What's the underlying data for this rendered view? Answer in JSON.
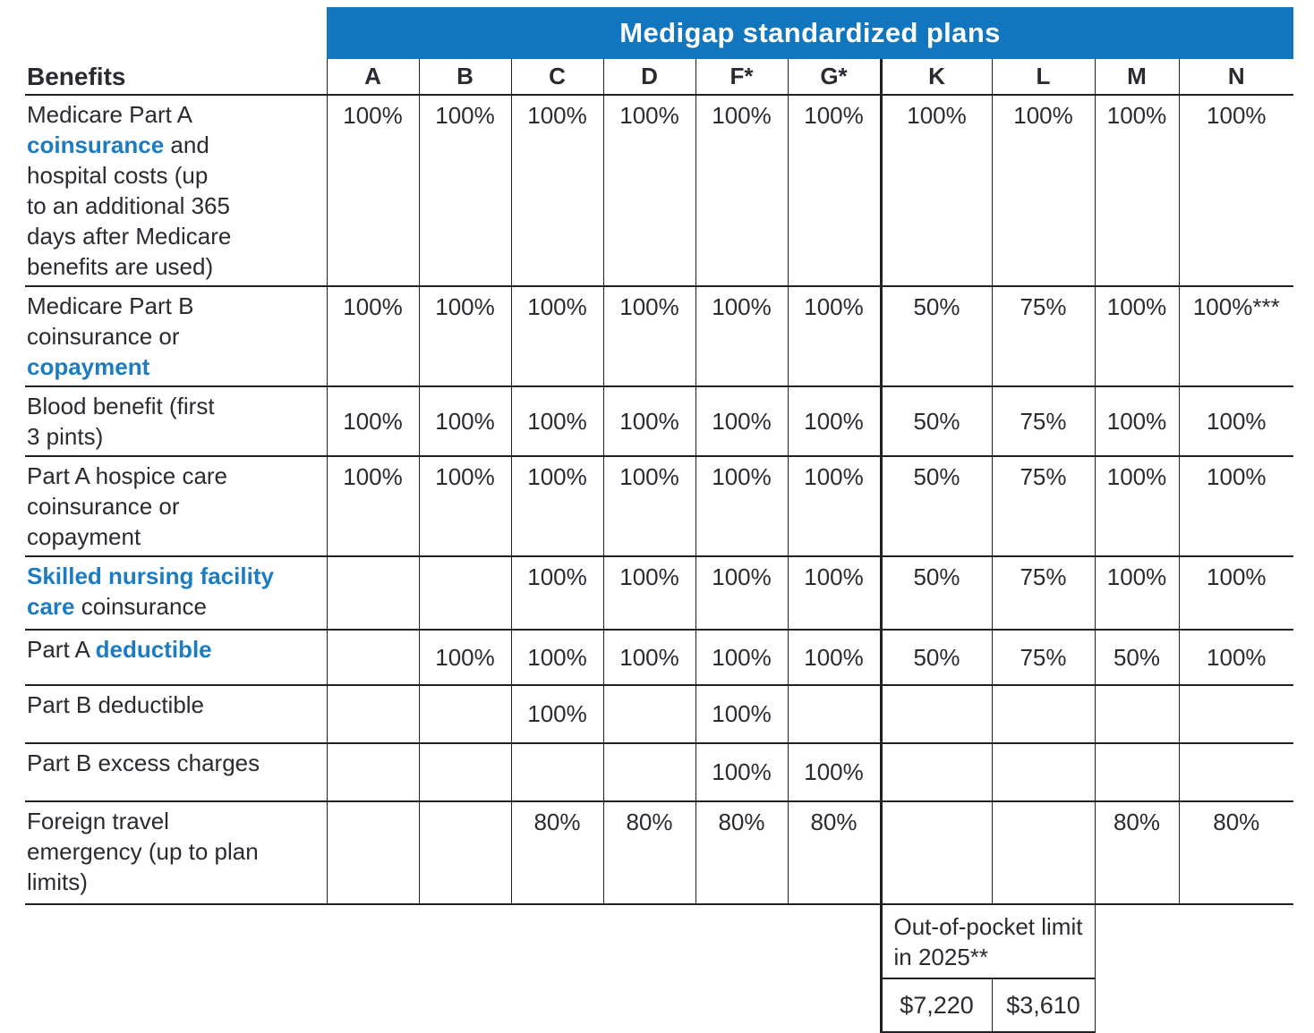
{
  "banner_title": "Medigap standardized plans",
  "benefits_header": "Benefits",
  "plans": [
    "A",
    "B",
    "C",
    "D",
    "F*",
    "G*",
    "K",
    "L",
    "M",
    "N"
  ],
  "rows": [
    {
      "name": "part-a-coinsurance",
      "label_lines": [
        [
          {
            "t": "Medicare Part A"
          }
        ],
        [
          {
            "t": "coinsurance",
            "em": true
          },
          {
            "t": " and"
          }
        ],
        [
          {
            "t": "hospital costs (up"
          }
        ],
        [
          {
            "t": "to an additional 365"
          }
        ],
        [
          {
            "t": "days after Medicare"
          }
        ],
        [
          {
            "t": "benefits are used)"
          }
        ]
      ],
      "values": [
        "100%",
        "100%",
        "100%",
        "100%",
        "100%",
        "100%",
        "100%",
        "100%",
        "100%",
        "100%"
      ]
    },
    {
      "name": "part-b-coinsurance",
      "label_lines": [
        [
          {
            "t": "Medicare Part B"
          }
        ],
        [
          {
            "t": "coinsurance or"
          }
        ],
        [
          {
            "t": "copayment",
            "em": true
          }
        ]
      ],
      "values": [
        "100%",
        "100%",
        "100%",
        "100%",
        "100%",
        "100%",
        "50%",
        "75%",
        "100%",
        "100%***"
      ]
    },
    {
      "name": "blood-benefit",
      "label_lines": [
        [
          {
            "t": "Blood benefit (first"
          }
        ],
        [
          {
            "t": "3 pints)"
          }
        ]
      ],
      "values": [
        "100%",
        "100%",
        "100%",
        "100%",
        "100%",
        "100%",
        "50%",
        "75%",
        "100%",
        "100%"
      ]
    },
    {
      "name": "part-a-hospice",
      "label_lines": [
        [
          {
            "t": "Part A hospice care"
          }
        ],
        [
          {
            "t": "coinsurance or"
          }
        ],
        [
          {
            "t": "copayment"
          }
        ]
      ],
      "values": [
        "100%",
        "100%",
        "100%",
        "100%",
        "100%",
        "100%",
        "50%",
        "75%",
        "100%",
        "100%"
      ]
    },
    {
      "name": "skilled-nursing",
      "label_lines": [
        [
          {
            "t": "Skilled nursing facility",
            "em": true
          }
        ],
        [
          {
            "t": "care",
            "em": true
          },
          {
            "t": " coinsurance"
          }
        ]
      ],
      "values": [
        "",
        "",
        "100%",
        "100%",
        "100%",
        "100%",
        "50%",
        "75%",
        "100%",
        "100%"
      ]
    },
    {
      "name": "part-a-deductible",
      "label_lines": [
        [
          {
            "t": "Part A "
          },
          {
            "t": "deductible",
            "em": true
          }
        ]
      ],
      "values": [
        "",
        "100%",
        "100%",
        "100%",
        "100%",
        "100%",
        "50%",
        "75%",
        "50%",
        "100%"
      ]
    },
    {
      "name": "part-b-deductible",
      "label_lines": [
        [
          {
            "t": "Part B deductible"
          }
        ]
      ],
      "values": [
        "",
        "",
        "100%",
        "",
        "100%",
        "",
        "",
        "",
        "",
        ""
      ]
    },
    {
      "name": "part-b-excess-charges",
      "label_lines": [
        [
          {
            "t": "Part B excess charges"
          }
        ]
      ],
      "values": [
        "",
        "",
        "",
        "",
        "100%",
        "100%",
        "",
        "",
        "",
        ""
      ]
    },
    {
      "name": "foreign-travel-emergency",
      "label_lines": [
        [
          {
            "t": "Foreign travel"
          }
        ],
        [
          {
            "t": "emergency (up to plan"
          }
        ],
        [
          {
            "t": "limits)"
          }
        ]
      ],
      "values": [
        "",
        "",
        "80%",
        "80%",
        "80%",
        "80%",
        "",
        "",
        "80%",
        "80%"
      ]
    }
  ],
  "out_of_pocket": {
    "label": "Out-of-pocket limit in 2025**",
    "k_value": "$7,220",
    "l_value": "$3,610"
  },
  "colors": {
    "banner_bg": "#1176BD",
    "banner_text": "#FFFFFF",
    "link_blue": "#1B7CC2",
    "text": "#2B2932",
    "border": "#221F24",
    "background": "#FFFFFF"
  }
}
